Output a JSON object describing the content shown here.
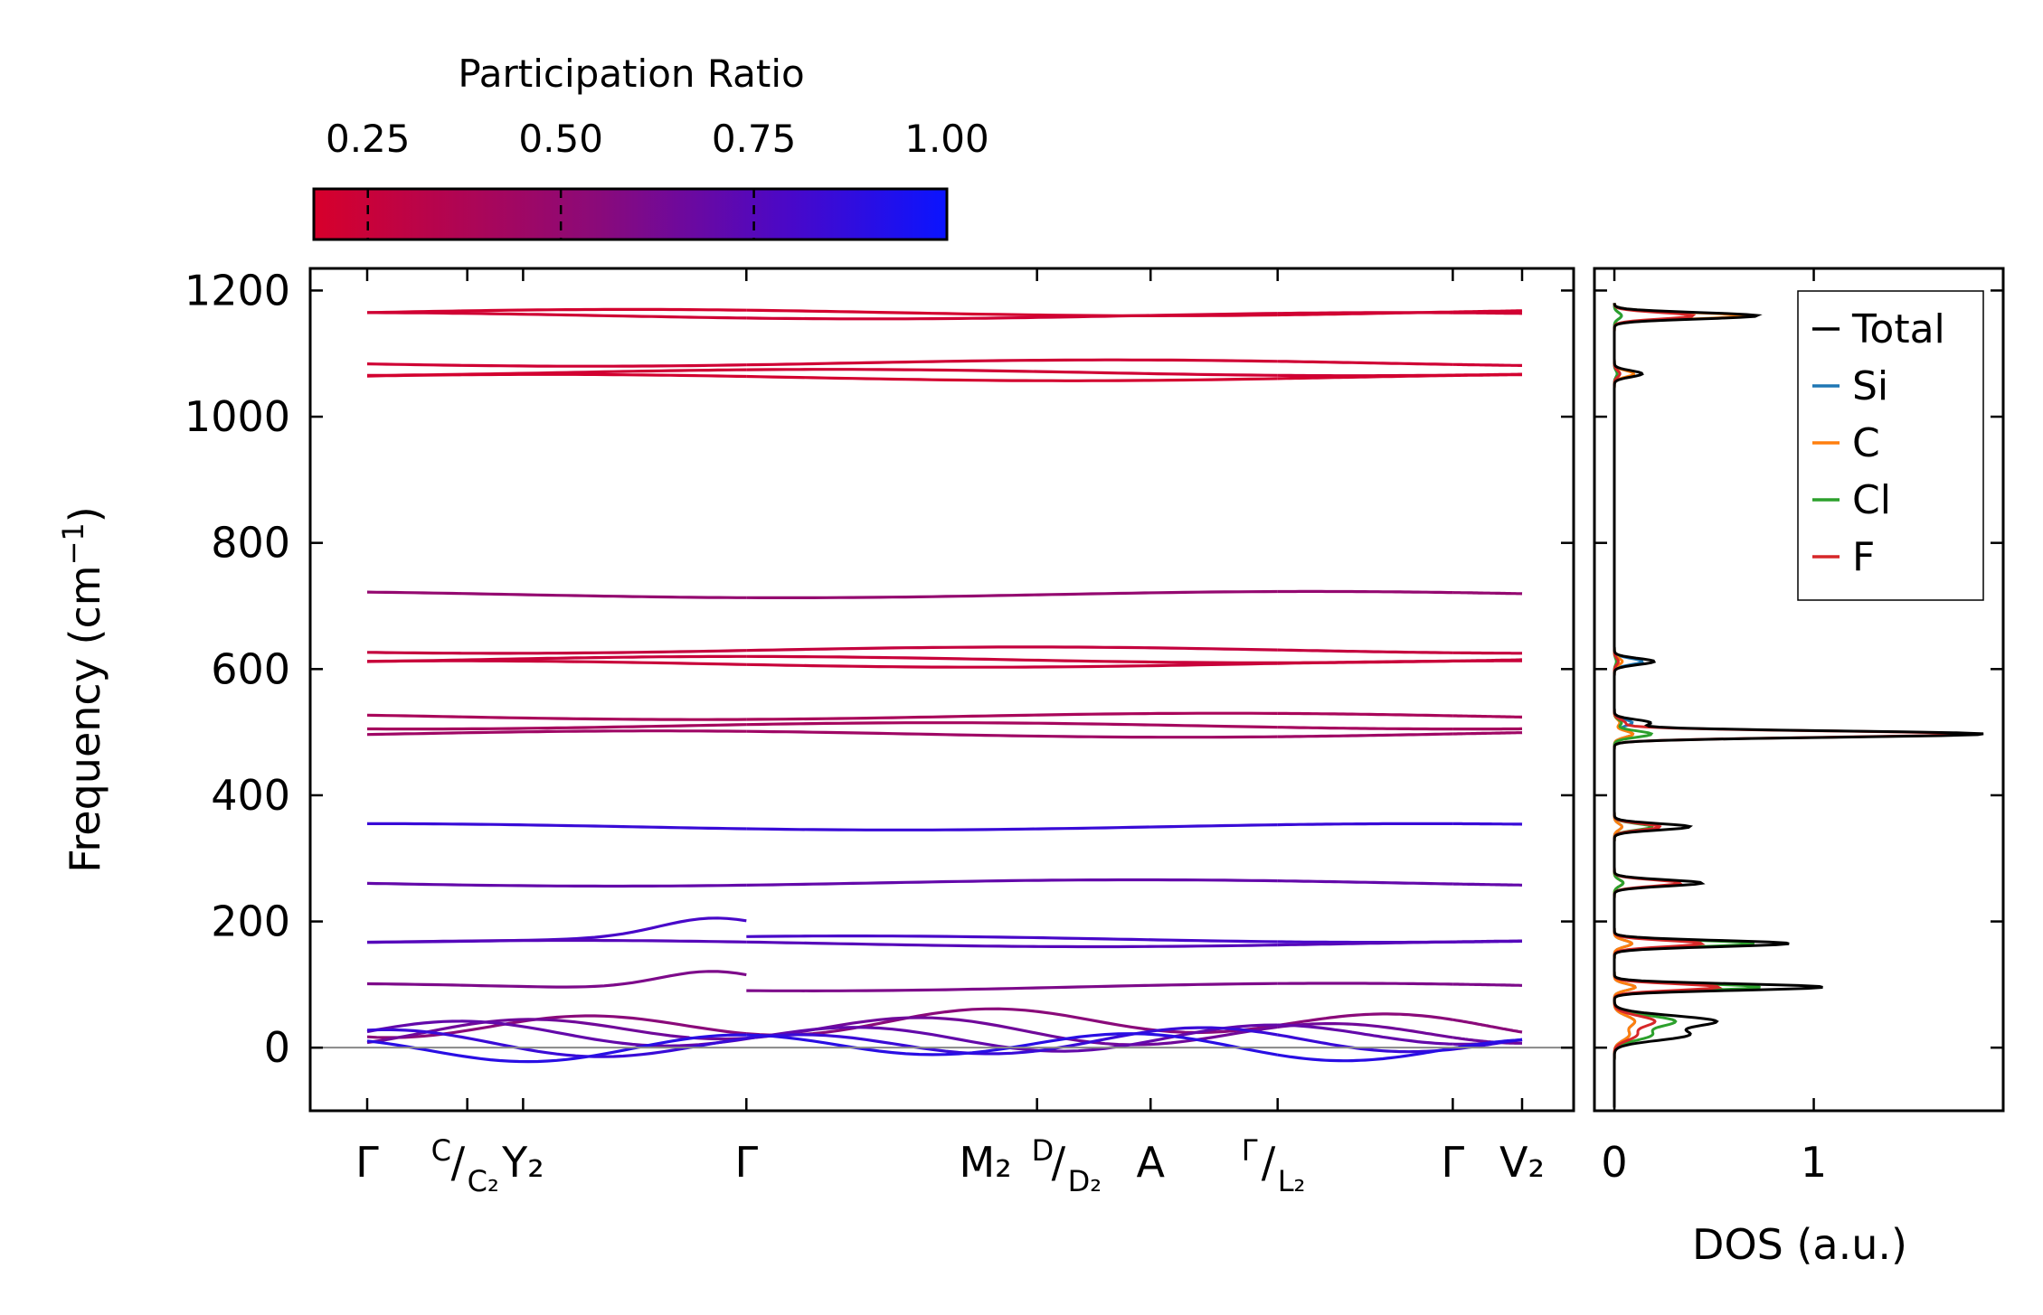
{
  "chart_data": [
    {
      "type": "line",
      "title": "",
      "xlabel": "",
      "ylabel": "Frequency (cm⁻¹)",
      "ylim": [
        -100,
        1235
      ],
      "yticks": [
        0,
        200,
        400,
        600,
        800,
        1000,
        1200
      ],
      "kpoints": [
        {
          "pos": 0,
          "main": "Γ",
          "sub": ""
        },
        {
          "pos": 0.26,
          "main": "",
          "frac": [
            "C",
            "C₂"
          ]
        },
        {
          "pos": 0.405,
          "main": "Y₂",
          "sub": ""
        },
        {
          "pos": 0.985,
          "main": "Γ",
          "sub": ""
        },
        {
          "pos": 1.74,
          "main": "M₂",
          "frac": [
            "D",
            "D₂"
          ]
        },
        {
          "pos": 2.035,
          "main": "A",
          "sub": ""
        },
        {
          "pos": 2.365,
          "main": "",
          "frac": [
            "Γ",
            "L₂"
          ]
        },
        {
          "pos": 2.82,
          "main": "Γ",
          "sub": ""
        },
        {
          "pos": 3.0,
          "main": "V₂",
          "sub": ""
        }
      ],
      "bands_approx": [
        1165,
        1160,
        1085,
        1070,
        1062,
        718,
        630,
        615,
        608,
        525,
        510,
        497,
        350,
        261,
        172,
        165,
        96,
        42,
        30,
        22,
        12,
        5
      ],
      "colormap": {
        "low": "#d7002b",
        "mid": "#7a0a82",
        "high": "#0a14ff"
      }
    },
    {
      "type": "line",
      "xlabel": "DOS (a.u.)",
      "xticks": [
        0,
        1
      ],
      "xlim": [
        -0.1,
        1.95
      ],
      "series": [
        {
          "name": "Total",
          "color": "#000000"
        },
        {
          "name": "Si",
          "color": "#1f77b4"
        },
        {
          "name": "C",
          "color": "#ff7f0e"
        },
        {
          "name": "Cl",
          "color": "#2ca02c"
        },
        {
          "name": "F",
          "color": "#d62728"
        }
      ],
      "peaks_total": [
        [
          1160,
          0.72
        ],
        [
          1068,
          0.14
        ],
        [
          612,
          0.2
        ],
        [
          515,
          0.18
        ],
        [
          497,
          1.86
        ],
        [
          350,
          0.38
        ],
        [
          261,
          0.44
        ],
        [
          165,
          0.88
        ],
        [
          96,
          1.05
        ],
        [
          42,
          0.5
        ],
        [
          20,
          0.36
        ]
      ]
    }
  ],
  "colorbar": {
    "title": "Participation Ratio",
    "tick_labels": [
      "0.25",
      "0.50",
      "0.75",
      "1.00"
    ],
    "tick_values": [
      0.25,
      0.5,
      0.75,
      1.0
    ],
    "range": [
      0.18,
      1.0
    ]
  },
  "legend": {
    "items": [
      {
        "label": "Total",
        "color": "#000000"
      },
      {
        "label": "Si",
        "color": "#1f77b4"
      },
      {
        "label": "C",
        "color": "#ff7f0e"
      },
      {
        "label": "Cl",
        "color": "#2ca02c"
      },
      {
        "label": "F",
        "color": "#d62728"
      }
    ]
  }
}
